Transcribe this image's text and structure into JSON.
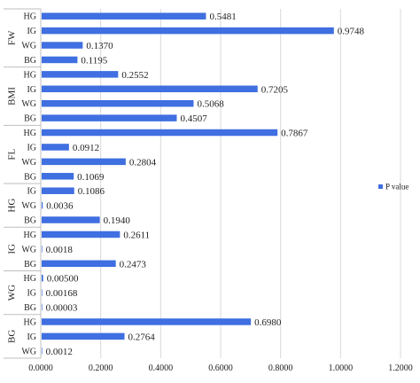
{
  "chart_data": {
    "type": "bar",
    "orientation": "horizontal",
    "title": "",
    "xlabel": "",
    "ylabel": "",
    "xlim": [
      0,
      1.2
    ],
    "x_ticks": [
      "0.0000",
      "0.2000",
      "0.4000",
      "0.6000",
      "0.8000",
      "1.0000",
      "1.2000"
    ],
    "grid": "vertical",
    "bar_color": "#3f6fe0",
    "legend": {
      "position": "right",
      "entries": [
        "P value"
      ]
    },
    "groups": [
      {
        "name": "FW",
        "categories": [
          "HG",
          "IG",
          "WG",
          "BG"
        ],
        "values": [
          0.5481,
          0.9748,
          0.137,
          0.1195
        ],
        "labels": [
          "0.5481",
          "0.9748",
          "0.1370",
          "0.1195"
        ]
      },
      {
        "name": "BMI",
        "categories": [
          "HG",
          "IG",
          "WG",
          "BG"
        ],
        "values": [
          0.2552,
          0.7205,
          0.5068,
          0.4507
        ],
        "labels": [
          "0.2552",
          "0.7205",
          "0.5068",
          "0.4507"
        ]
      },
      {
        "name": "FL",
        "categories": [
          "HG",
          "IG",
          "WG",
          "BG"
        ],
        "values": [
          0.7867,
          0.0912,
          0.2804,
          0.1069
        ],
        "labels": [
          "0.7867",
          "0.0912",
          "0.2804",
          "0.1069"
        ]
      },
      {
        "name": "HG",
        "categories": [
          "IG",
          "WG",
          "BG"
        ],
        "values": [
          0.1086,
          0.0036,
          0.194
        ],
        "labels": [
          "0.1086",
          "0.0036",
          "0.1940"
        ]
      },
      {
        "name": "IG",
        "categories": [
          "HG",
          "WG",
          "BG"
        ],
        "values": [
          0.2611,
          0.0018,
          0.2473
        ],
        "labels": [
          "0.2611",
          "0.0018",
          "0.2473"
        ]
      },
      {
        "name": "WG",
        "categories": [
          "HG",
          "IG",
          "BG"
        ],
        "values": [
          0.005,
          0.00168,
          3e-05
        ],
        "labels": [
          "0.00500",
          "0.00168",
          "0.00003"
        ]
      },
      {
        "name": "BG",
        "categories": [
          "HG",
          "IG",
          "WG"
        ],
        "values": [
          0.698,
          0.2764,
          0.0012
        ],
        "labels": [
          "0.6980",
          "0.2764",
          "0.0012"
        ]
      }
    ]
  }
}
